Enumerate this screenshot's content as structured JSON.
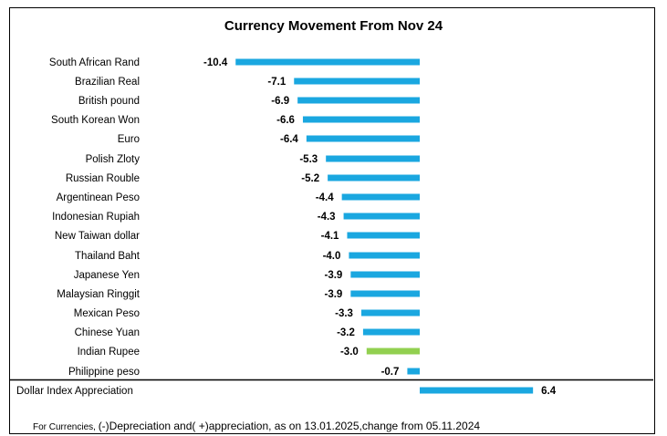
{
  "chart_data": {
    "type": "bar",
    "orientation": "horizontal",
    "title": "Currency Movement From Nov 24",
    "categories": [
      "South African Rand",
      "Brazilian Real",
      "British pound",
      "South Korean Won",
      "Euro",
      "Polish Zloty",
      "Russian Rouble",
      "Argentinean Peso",
      "Indonesian Rupiah",
      "New Taiwan dollar",
      "Thailand Baht",
      "Japanese Yen",
      "Malaysian Ringgit",
      "Mexican Peso",
      "Chinese Yuan",
      "Indian Rupee",
      "Philippine peso",
      "Dollar Index Appreciation"
    ],
    "values": [
      -10.4,
      -7.1,
      -6.9,
      -6.6,
      -6.4,
      -5.3,
      -5.2,
      -4.4,
      -4.3,
      -4.1,
      -4.0,
      -3.9,
      -3.9,
      -3.3,
      -3.2,
      -3.0,
      -0.7,
      6.4
    ],
    "value_labels": [
      "-10.4",
      "-7.1",
      "-6.9",
      "-6.6",
      "-6.4",
      "-5.3",
      "-5.2",
      "-4.4",
      "-4.3",
      "-4.1",
      "-4.0",
      "-3.9",
      "-3.9",
      "-3.3",
      "-3.2",
      "-3.0",
      "-0.7",
      "6.4"
    ],
    "bar_colors": [
      "#1aa7e0",
      "#1aa7e0",
      "#1aa7e0",
      "#1aa7e0",
      "#1aa7e0",
      "#1aa7e0",
      "#1aa7e0",
      "#1aa7e0",
      "#1aa7e0",
      "#1aa7e0",
      "#1aa7e0",
      "#1aa7e0",
      "#1aa7e0",
      "#1aa7e0",
      "#1aa7e0",
      "#92d050",
      "#1aa7e0",
      "#1aa7e0"
    ],
    "xlim": [
      -10.4,
      6.4
    ],
    "grid": false,
    "legend": "none"
  },
  "footnote": {
    "prefix": "For Currencies, ",
    "text": "(-)Depreciation and( +)appreciation, as on 13.01.2025,change from 05.11.2024"
  }
}
